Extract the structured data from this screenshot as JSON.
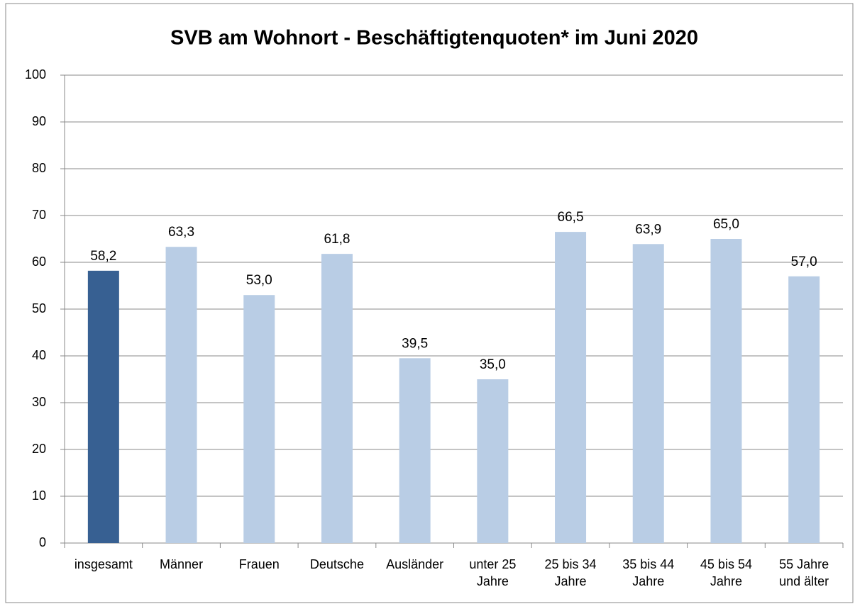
{
  "chart_data": {
    "type": "bar",
    "title": "SVB am Wohnort - Beschäftigtenquoten* im  Juni 2020",
    "categories": [
      "insgesamt",
      "Männer",
      "Frauen",
      "Deutsche",
      "Ausländer",
      "unter 25 Jahre",
      "25 bis 34 Jahre",
      "35 bis 44 Jahre",
      "45 bis 54 Jahre",
      "55 Jahre und älter"
    ],
    "values": [
      58.2,
      63.3,
      53.0,
      61.8,
      39.5,
      35.0,
      66.5,
      63.9,
      65.0,
      57.0
    ],
    "value_labels": [
      "58,2",
      "63,3",
      "53,0",
      "61,8",
      "39,5",
      "35,0",
      "66,5",
      "63,9",
      "65,0",
      "57,0"
    ],
    "colors": [
      "#376092",
      "#b9cde5",
      "#b9cde5",
      "#b9cde5",
      "#b9cde5",
      "#b9cde5",
      "#b9cde5",
      "#b9cde5",
      "#b9cde5",
      "#b9cde5"
    ],
    "ylim": [
      0,
      100
    ],
    "yticks": [
      0,
      10,
      20,
      30,
      40,
      50,
      60,
      70,
      80,
      90,
      100
    ],
    "grid": true
  }
}
